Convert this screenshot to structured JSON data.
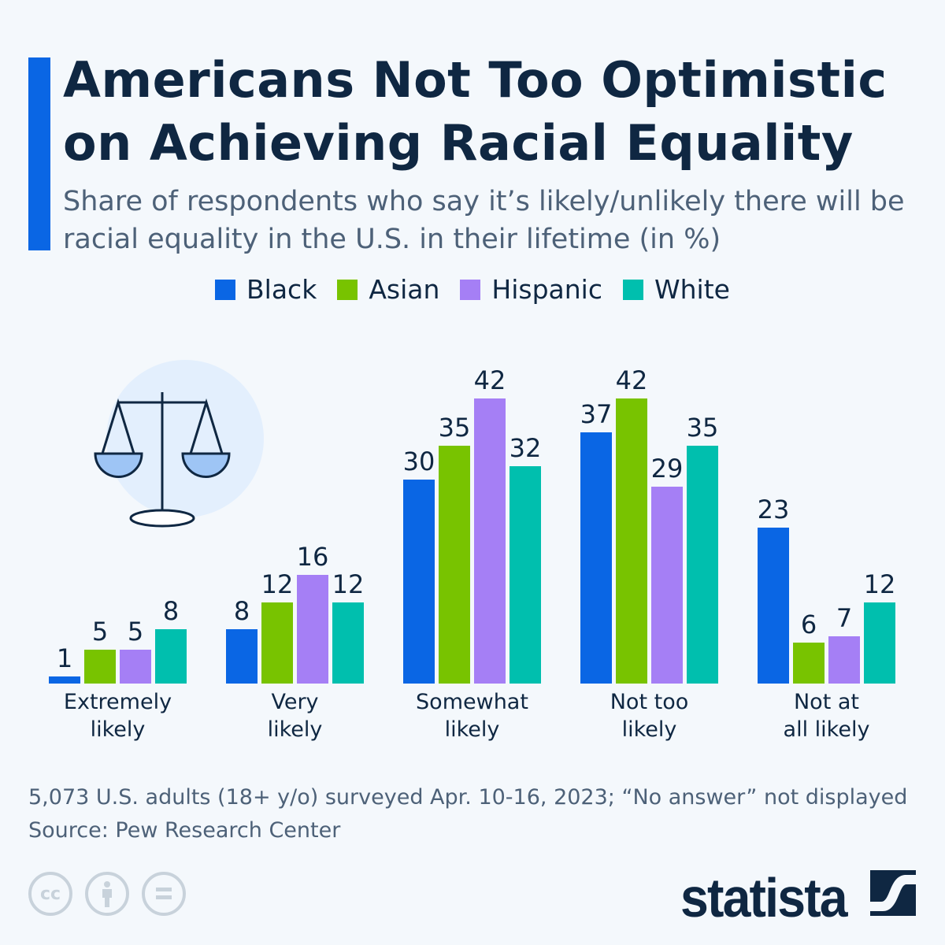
{
  "title": "Americans Not Too Optimistic on Achieving Racial Equality",
  "subtitle": "Share of respondents who say it’s likely/unlikely there will be racial equality in the U.S. in their lifetime (in %)",
  "colors": {
    "accent": "#0a66e4",
    "title": "#0f2742",
    "background": "#f4f8fc"
  },
  "chart_data": {
    "type": "bar",
    "categories": [
      "Extremely likely",
      "Very likely",
      "Somewhat likely",
      "Not too likely",
      "Not at all likely"
    ],
    "series": [
      {
        "name": "Black",
        "color": "#0a66e4",
        "values": [
          1,
          8,
          30,
          37,
          23
        ]
      },
      {
        "name": "Asian",
        "color": "#78c300",
        "values": [
          5,
          12,
          35,
          42,
          6
        ]
      },
      {
        "name": "Hispanic",
        "color": "#a57ff5",
        "values": [
          5,
          16,
          42,
          29,
          7
        ]
      },
      {
        "name": "White",
        "color": "#00bfae",
        "values": [
          8,
          12,
          32,
          35,
          12
        ]
      }
    ],
    "ylim": [
      0,
      42
    ],
    "grid": false,
    "legend_placement": "top",
    "data_labels": true
  },
  "footer": {
    "note": "5,073 U.S. adults (18+ y/o) surveyed Apr. 10-16, 2023; “No answer” not displayed",
    "source": "Source: Pew Research Center",
    "license_icons": [
      "cc-icon",
      "attribution-icon",
      "no-derivatives-icon"
    ],
    "brand": "statista"
  }
}
